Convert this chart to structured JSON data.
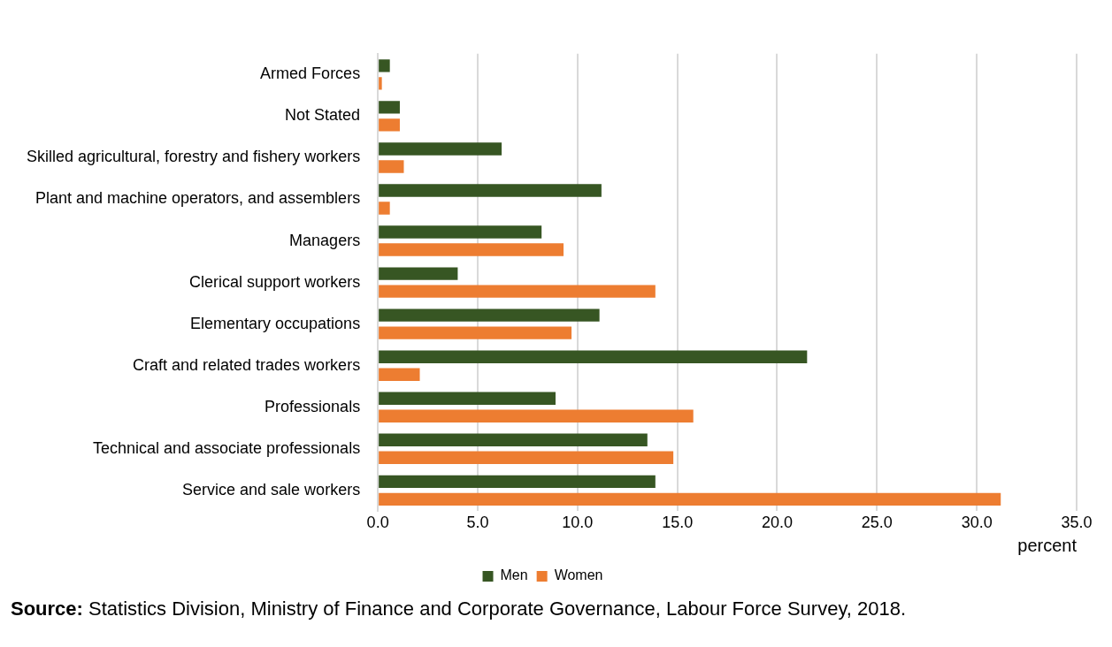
{
  "chart_data": {
    "type": "bar",
    "orientation": "horizontal",
    "categories": [
      "Armed Forces",
      "Not Stated",
      "Skilled agricultural, forestry and fishery workers",
      "Plant and machine operators, and assemblers",
      "Managers",
      "Clerical support workers",
      "Elementary occupations",
      "Craft and related trades workers",
      "Professionals",
      "Technical and associate professionals",
      "Service and sale workers"
    ],
    "series": [
      {
        "name": "Men",
        "color": "#375623",
        "values": [
          0.6,
          1.1,
          6.2,
          11.2,
          8.2,
          4.0,
          11.1,
          21.5,
          8.9,
          13.5,
          13.9
        ]
      },
      {
        "name": "Women",
        "color": "#ed7d31",
        "values": [
          0.2,
          1.1,
          1.3,
          0.6,
          9.3,
          13.9,
          9.7,
          2.1,
          15.8,
          14.8,
          31.2
        ]
      }
    ],
    "xlim": [
      0,
      35
    ],
    "xticks": [
      {
        "value": 0,
        "label": "0.0"
      },
      {
        "value": 5,
        "label": "5.0"
      },
      {
        "value": 10,
        "label": "10.0"
      },
      {
        "value": 15,
        "label": "15.0"
      },
      {
        "value": 20,
        "label": "20.0"
      },
      {
        "value": 25,
        "label": "25.0"
      },
      {
        "value": 30,
        "label": "30.0"
      },
      {
        "value": 35,
        "label": "35.0"
      }
    ],
    "xlabel": "percent",
    "grid": "x",
    "legend": "bottom",
    "annotations": [
      "Source: Statistics Division, Ministry of Finance and Corporate Governance, Labour Force Survey, 2018."
    ]
  }
}
